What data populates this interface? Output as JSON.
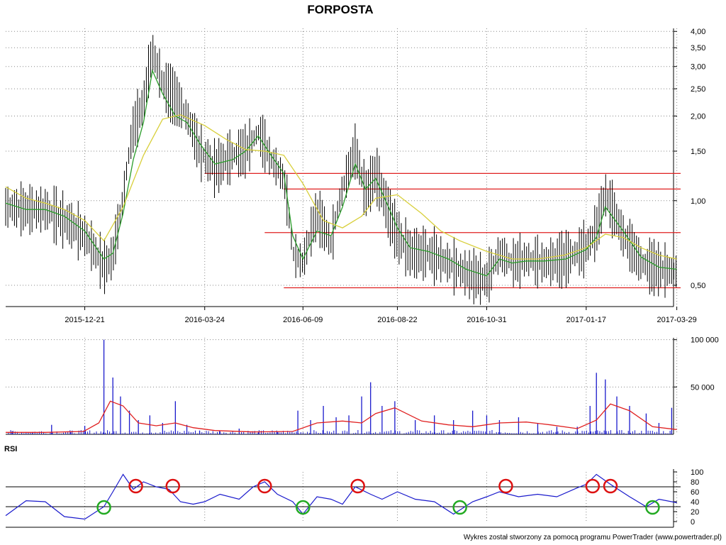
{
  "chart_data": [
    {
      "type": "candlestick",
      "title": "FORPOSTA",
      "y_scale": "log",
      "ylim": [
        0.42,
        4.1
      ],
      "y_ticks": [
        "4,00",
        "3,50",
        "3,00",
        "2,50",
        "2,00",
        "1,50",
        "1,00",
        "0,50"
      ],
      "y_tick_values": [
        4.0,
        3.5,
        3.0,
        2.5,
        2.0,
        1.5,
        1.0,
        0.5
      ],
      "x_dates": [
        "2015-12-21",
        "2016-03-24",
        "2016-06-09",
        "2016-08-22",
        "2016-10-31",
        "2017-01-17",
        "2017-03-29"
      ],
      "x_range": [
        "2015-10-20",
        "2017-04-01"
      ],
      "grid": true,
      "series": [
        {
          "role": "price",
          "color": "#000000",
          "x": [
            "2015-10-20",
            "2015-11-05",
            "2015-11-20",
            "2015-12-05",
            "2015-12-21",
            "2016-01-05",
            "2016-01-12",
            "2016-01-20",
            "2016-01-28",
            "2016-02-05",
            "2016-02-12",
            "2016-02-20",
            "2016-03-01",
            "2016-03-10",
            "2016-03-20",
            "2016-04-01",
            "2016-04-15",
            "2016-04-25",
            "2016-05-05",
            "2016-05-15",
            "2016-05-25",
            "2016-06-01",
            "2016-06-09",
            "2016-06-20",
            "2016-07-01",
            "2016-07-10",
            "2016-07-20",
            "2016-07-28",
            "2016-08-05",
            "2016-08-15",
            "2016-08-22",
            "2016-09-01",
            "2016-09-15",
            "2016-10-01",
            "2016-10-15",
            "2016-10-31",
            "2016-11-10",
            "2016-11-20",
            "2016-12-01",
            "2016-12-15",
            "2017-01-01",
            "2017-01-17",
            "2017-01-25",
            "2017-02-01",
            "2017-02-15",
            "2017-03-01",
            "2017-03-15",
            "2017-03-29"
          ],
          "values": [
            0.95,
            0.93,
            0.93,
            0.85,
            0.75,
            0.58,
            0.63,
            1.0,
            1.8,
            2.2,
            3.4,
            2.6,
            2.3,
            2.0,
            1.5,
            1.3,
            1.45,
            1.5,
            1.75,
            1.4,
            1.2,
            0.65,
            0.6,
            0.9,
            0.7,
            1.1,
            1.5,
            1.05,
            1.25,
            0.9,
            0.75,
            0.65,
            0.65,
            0.6,
            0.55,
            0.52,
            0.65,
            0.6,
            0.62,
            0.6,
            0.62,
            0.68,
            0.78,
            1.05,
            0.75,
            0.6,
            0.57,
            0.56
          ]
        },
        {
          "role": "short-ma",
          "color": "#2a9d2a",
          "x": [
            "2015-10-20",
            "2015-11-05",
            "2015-11-20",
            "2015-12-05",
            "2015-12-21",
            "2016-01-05",
            "2016-01-12",
            "2016-01-20",
            "2016-01-28",
            "2016-02-05",
            "2016-02-12",
            "2016-02-20",
            "2016-03-01",
            "2016-03-10",
            "2016-03-20",
            "2016-04-01",
            "2016-04-15",
            "2016-04-25",
            "2016-05-05",
            "2016-05-15",
            "2016-05-25",
            "2016-06-01",
            "2016-06-09",
            "2016-06-20",
            "2016-07-01",
            "2016-07-10",
            "2016-07-20",
            "2016-07-28",
            "2016-08-05",
            "2016-08-15",
            "2016-08-22",
            "2016-09-01",
            "2016-09-15",
            "2016-10-01",
            "2016-10-15",
            "2016-10-31",
            "2016-11-10",
            "2016-11-20",
            "2016-12-01",
            "2016-12-15",
            "2017-01-01",
            "2017-01-17",
            "2017-01-25",
            "2017-02-01",
            "2017-02-15",
            "2017-03-01",
            "2017-03-15",
            "2017-03-29"
          ],
          "values": [
            0.98,
            0.93,
            0.93,
            0.88,
            0.78,
            0.62,
            0.65,
            0.9,
            1.4,
            1.9,
            2.9,
            2.4,
            2.0,
            1.9,
            1.6,
            1.35,
            1.4,
            1.5,
            1.7,
            1.45,
            1.25,
            0.75,
            0.62,
            0.78,
            0.75,
            0.95,
            1.35,
            1.1,
            1.2,
            0.95,
            0.8,
            0.68,
            0.66,
            0.62,
            0.57,
            0.54,
            0.62,
            0.6,
            0.61,
            0.61,
            0.62,
            0.67,
            0.74,
            0.95,
            0.78,
            0.63,
            0.58,
            0.57
          ]
        },
        {
          "role": "long-ma",
          "color": "#d8cf3a",
          "x": [
            "2015-10-20",
            "2015-11-05",
            "2015-11-20",
            "2015-12-05",
            "2015-12-21",
            "2016-01-05",
            "2016-01-20",
            "2016-02-05",
            "2016-02-20",
            "2016-03-05",
            "2016-03-24",
            "2016-04-10",
            "2016-04-25",
            "2016-05-10",
            "2016-05-25",
            "2016-06-09",
            "2016-06-25",
            "2016-07-10",
            "2016-07-25",
            "2016-08-05",
            "2016-08-22",
            "2016-09-10",
            "2016-09-25",
            "2016-10-10",
            "2016-10-31",
            "2016-11-20",
            "2016-12-10",
            "2016-12-31",
            "2017-01-17",
            "2017-02-01",
            "2017-02-15",
            "2017-03-01",
            "2017-03-15",
            "2017-03-29"
          ],
          "values": [
            1.12,
            1.02,
            0.98,
            0.93,
            0.85,
            0.72,
            0.95,
            1.45,
            1.95,
            2.02,
            1.85,
            1.65,
            1.52,
            1.5,
            1.45,
            1.15,
            0.85,
            0.8,
            0.88,
            1.02,
            1.05,
            0.9,
            0.78,
            0.72,
            0.66,
            0.62,
            0.62,
            0.64,
            0.68,
            0.76,
            0.74,
            0.68,
            0.64,
            0.62
          ]
        }
      ],
      "horizontal_lines": [
        {
          "value": 1.25,
          "from": "2016-03-24",
          "color": "#e02020"
        },
        {
          "value": 1.1,
          "from": "2016-05-25",
          "color": "#e02020"
        },
        {
          "value": 0.77,
          "from": "2016-05-10",
          "color": "#e02020"
        },
        {
          "value": 0.49,
          "from": "2016-05-25",
          "color": "#e02020"
        }
      ]
    },
    {
      "type": "bar",
      "role": "volume",
      "y_ticks": [
        "100 000",
        "50 000"
      ],
      "y_tick_values": [
        100000,
        50000
      ],
      "ylim": [
        0,
        102000
      ],
      "grid": true,
      "series": [
        {
          "role": "volume-bars",
          "color": "#1a1acc",
          "x": [
            "2015-10-25",
            "2015-11-10",
            "2015-11-25",
            "2015-12-10",
            "2015-12-21",
            "2016-01-05",
            "2016-01-12",
            "2016-01-18",
            "2016-01-25",
            "2016-02-01",
            "2016-02-10",
            "2016-02-20",
            "2016-03-01",
            "2016-03-10",
            "2016-03-20",
            "2016-04-05",
            "2016-04-20",
            "2016-05-05",
            "2016-05-20",
            "2016-06-05",
            "2016-06-15",
            "2016-06-25",
            "2016-07-05",
            "2016-07-15",
            "2016-07-25",
            "2016-08-01",
            "2016-08-10",
            "2016-08-20",
            "2016-09-05",
            "2016-09-20",
            "2016-10-05",
            "2016-10-20",
            "2016-10-31",
            "2016-11-10",
            "2016-11-25",
            "2016-12-10",
            "2016-12-25",
            "2017-01-10",
            "2017-01-20",
            "2017-01-25",
            "2017-02-01",
            "2017-02-10",
            "2017-02-20",
            "2017-03-05",
            "2017-03-15",
            "2017-03-25"
          ],
          "values": [
            3000,
            2000,
            10000,
            3000,
            9000,
            100000,
            60000,
            40000,
            25000,
            15000,
            20000,
            12000,
            35000,
            10000,
            4000,
            3000,
            6000,
            2000,
            2500,
            25000,
            15000,
            30000,
            18000,
            20000,
            40000,
            55000,
            30000,
            35000,
            15000,
            20000,
            15000,
            25000,
            20000,
            15000,
            18000,
            12000,
            8000,
            8000,
            30000,
            65000,
            58000,
            40000,
            30000,
            22000,
            12000,
            28000
          ]
        },
        {
          "role": "volume-average",
          "color": "#e02020",
          "x": [
            "2015-10-20",
            "2015-11-20",
            "2015-12-20",
            "2016-01-01",
            "2016-01-10",
            "2016-01-20",
            "2016-02-01",
            "2016-02-15",
            "2016-03-01",
            "2016-03-15",
            "2016-04-01",
            "2016-05-01",
            "2016-06-01",
            "2016-06-20",
            "2016-07-10",
            "2016-07-25",
            "2016-08-05",
            "2016-08-20",
            "2016-09-10",
            "2016-10-01",
            "2016-10-20",
            "2016-11-10",
            "2016-12-01",
            "2016-12-20",
            "2017-01-10",
            "2017-01-25",
            "2017-02-05",
            "2017-02-20",
            "2017-03-10",
            "2017-03-29"
          ],
          "values": [
            2000,
            2000,
            3000,
            12000,
            35000,
            30000,
            12000,
            9000,
            12000,
            7000,
            4000,
            2500,
            3000,
            12000,
            14000,
            12000,
            22000,
            28000,
            14000,
            10000,
            8000,
            12000,
            13000,
            10000,
            6000,
            15000,
            32000,
            25000,
            8000,
            5000
          ]
        }
      ]
    },
    {
      "type": "line",
      "title": "RSI",
      "ylim": [
        0,
        100
      ],
      "y_ticks": [
        "100",
        "80",
        "60",
        "40",
        "20",
        "0"
      ],
      "y_tick_values": [
        100,
        80,
        60,
        40,
        20,
        0
      ],
      "reference_lines": [
        70,
        30
      ],
      "grid": true,
      "series": [
        {
          "role": "rsi",
          "color": "#1a1acc",
          "x": [
            "2015-10-20",
            "2015-11-05",
            "2015-11-20",
            "2015-12-05",
            "2015-12-21",
            "2016-01-05",
            "2016-01-12",
            "2016-01-20",
            "2016-01-28",
            "2016-02-05",
            "2016-02-15",
            "2016-02-25",
            "2016-03-05",
            "2016-03-15",
            "2016-03-24",
            "2016-04-05",
            "2016-04-20",
            "2016-05-01",
            "2016-05-10",
            "2016-05-20",
            "2016-06-01",
            "2016-06-09",
            "2016-06-20",
            "2016-07-01",
            "2016-07-10",
            "2016-07-20",
            "2016-08-01",
            "2016-08-10",
            "2016-08-22",
            "2016-09-05",
            "2016-09-20",
            "2016-10-05",
            "2016-10-20",
            "2016-10-31",
            "2016-11-10",
            "2016-11-25",
            "2016-12-10",
            "2016-12-25",
            "2017-01-10",
            "2017-01-17",
            "2017-01-25",
            "2017-02-05",
            "2017-02-20",
            "2017-03-05",
            "2017-03-15",
            "2017-03-29"
          ],
          "values": [
            12,
            42,
            40,
            10,
            5,
            30,
            60,
            95,
            65,
            80,
            70,
            65,
            40,
            35,
            40,
            55,
            45,
            70,
            80,
            55,
            40,
            15,
            50,
            45,
            35,
            70,
            55,
            45,
            60,
            45,
            40,
            15,
            40,
            50,
            60,
            50,
            55,
            50,
            68,
            75,
            95,
            75,
            50,
            30,
            45,
            38
          ]
        }
      ],
      "overbought_markers": [
        "2016-01-30",
        "2016-02-28",
        "2016-05-10",
        "2016-07-22",
        "2016-11-15",
        "2017-01-22",
        "2017-02-05"
      ],
      "oversold_markers": [
        "2016-01-05",
        "2016-06-09",
        "2016-10-10",
        "2017-03-10"
      ]
    }
  ],
  "footer": {
    "credit": "Wykres został stworzony za pomocą programu PowerTrader (www.powertrader.pl)"
  },
  "colors": {
    "overbought_marker": "#dd1111",
    "oversold_marker": "#22aa22",
    "axis": "#000000"
  }
}
